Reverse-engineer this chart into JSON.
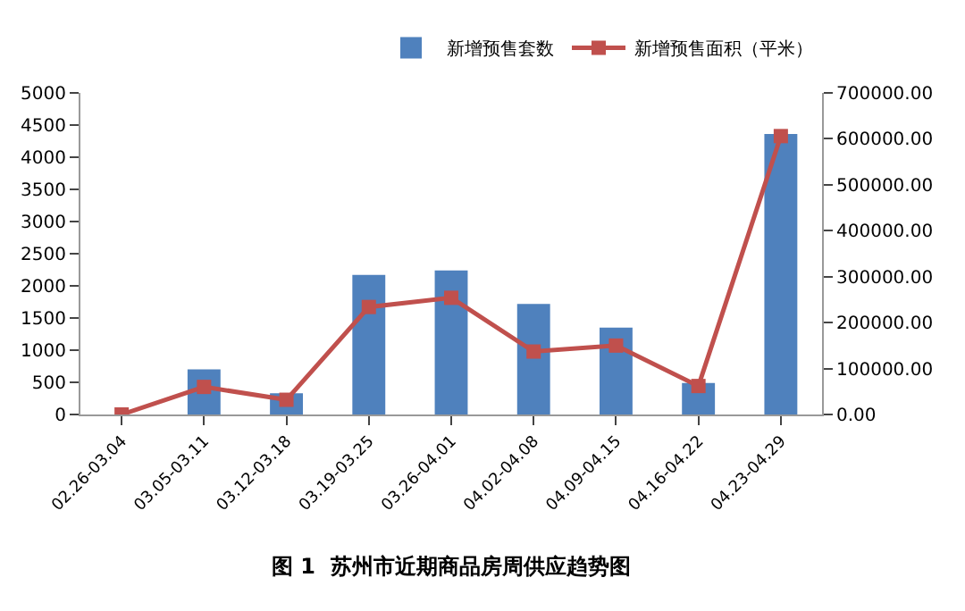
{
  "chart_data": {
    "type": "bar",
    "title": "图 1  苏州市近期商品房周供应趋势图",
    "categories": [
      "02.26-03.04",
      "03.05-03.11",
      "03.12-03.18",
      "03.19-03.25",
      "03.26-04.01",
      "04.02-04.08",
      "04.09-04.15",
      "04.16-04.22",
      "04.23-04.29"
    ],
    "series": [
      {
        "name": "新增预售套数",
        "color": "#4f81bd",
        "values": [
          null,
          700,
          330,
          2170,
          2240,
          1720,
          1350,
          490,
          4360
        ]
      },
      {
        "name": "新增预售面积（平米）",
        "type": "line",
        "axis": "y2",
        "color": "#c0504d",
        "marker": "square",
        "values": [
          0,
          60000,
          32000,
          234000,
          254000,
          137000,
          150000,
          62000,
          606000
        ]
      }
    ],
    "ylim": [
      0,
      5000
    ],
    "yticks": [
      0,
      500,
      1000,
      1500,
      2000,
      2500,
      3000,
      3500,
      4000,
      4500,
      5000
    ],
    "y2lim": [
      0,
      700000
    ],
    "y2ticks": [
      {
        "value": 0,
        "label": "0.00"
      },
      {
        "value": 100000,
        "label": "100000.00"
      },
      {
        "value": 200000,
        "label": "200000.00"
      },
      {
        "value": 300000,
        "label": "300000.00"
      },
      {
        "value": 400000,
        "label": "400000.00"
      },
      {
        "value": 500000,
        "label": "500000.00"
      },
      {
        "value": 600000,
        "label": "600000.00"
      },
      {
        "value": 700000,
        "label": "700000.00"
      }
    ],
    "legend": "top right"
  }
}
